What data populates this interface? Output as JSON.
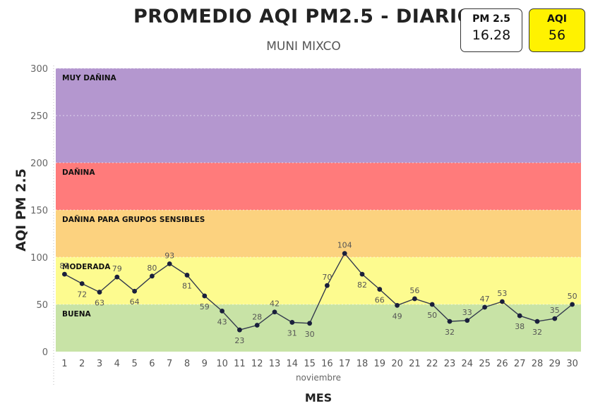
{
  "header": {
    "title": "PROMEDIO AQI PM2.5 - DIARIO",
    "subtitle": "MUNI MIXCO"
  },
  "kpis": {
    "pm25": {
      "label": "PM 2.5",
      "value": "16.28",
      "bg": "#ffffff"
    },
    "aqi": {
      "label": "AQI",
      "value": "56",
      "bg": "#fff200"
    }
  },
  "chart_data": {
    "type": "line",
    "xlabel": "MES",
    "x_sublabel": "noviembre",
    "ylabel": "AQI PM 2.5",
    "ylim": [
      0,
      300
    ],
    "yticks": [
      0,
      50,
      100,
      150,
      200,
      250,
      300
    ],
    "x": [
      1,
      2,
      3,
      4,
      5,
      6,
      7,
      8,
      9,
      10,
      11,
      12,
      13,
      14,
      15,
      16,
      17,
      18,
      19,
      20,
      21,
      22,
      23,
      24,
      25,
      26,
      27,
      28,
      29,
      30
    ],
    "series": [
      {
        "values": [
          82,
          72,
          63,
          79,
          64,
          80,
          93,
          81,
          59,
          43,
          23,
          28,
          42,
          31,
          30,
          70,
          104,
          82,
          66,
          49,
          56,
          50,
          32,
          33,
          47,
          53,
          38,
          32,
          35,
          50
        ],
        "color": "#1a1f3c"
      }
    ],
    "bands": [
      {
        "label": "BUENA",
        "from": 0,
        "to": 50,
        "color": "#c8e3a6"
      },
      {
        "label": "MODERADA",
        "from": 50,
        "to": 100,
        "color": "#fdfb8f"
      },
      {
        "label": "DAÑINA PARA GRUPOS SENSIBLES",
        "from": 100,
        "to": 150,
        "color": "#fcd27f"
      },
      {
        "label": "DAÑINA",
        "from": 150,
        "to": 200,
        "color": "#ff7b7b"
      },
      {
        "label": "MUY DAÑINA",
        "from": 200,
        "to": 300,
        "color": "#b497cf"
      }
    ],
    "grid": true
  }
}
